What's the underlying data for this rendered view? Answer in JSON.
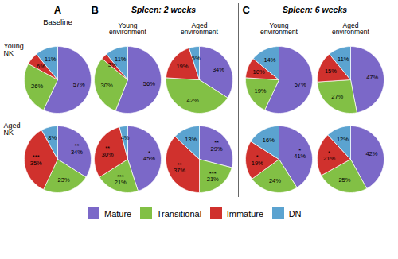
{
  "chart_data": {
    "type": "pie",
    "categories": [
      "Mature",
      "Transitional",
      "Immature",
      "DN"
    ],
    "colors": [
      "#7b68c8",
      "#82c045",
      "#d0312d",
      "#5ba3d0"
    ],
    "legend": "bottom",
    "data_labels": true,
    "row_labels": [
      "Young\nNK",
      "Aged\nNK"
    ],
    "panels": [
      {
        "panel": "A",
        "title": "Baseline",
        "column_labels": [],
        "pies": [
          [
            {
              "values": [
                57,
                26,
                6,
                11
              ],
              "value_labels": [
                "57%",
                "26%",
                "6%",
                "11%"
              ]
            }
          ],
          [
            {
              "values": [
                34,
                23,
                35,
                8
              ],
              "value_labels": [
                "**\n34%",
                "23%",
                "***\n35%",
                "8%"
              ]
            }
          ]
        ]
      },
      {
        "panel": "B",
        "title": "Spleen: 2 weeks",
        "column_labels": [
          "Young\nenvironment",
          "Aged\nenvironment"
        ],
        "pies": [
          [
            {
              "values": [
                56,
                30,
                3,
                11
              ],
              "value_labels": [
                "56%",
                "30%",
                "3%",
                "11%"
              ]
            },
            {
              "values": [
                34,
                42,
                19,
                5
              ],
              "value_labels": [
                "34%",
                "42%",
                "19%",
                "5%"
              ]
            }
          ],
          [
            {
              "values": [
                45,
                21,
                30,
                4
              ],
              "value_labels": [
                "*\n45%",
                "***\n21%",
                "**\n30%",
                "4%"
              ]
            },
            {
              "values": [
                29,
                21,
                37,
                13
              ],
              "value_labels": [
                "**\n29%",
                "***\n21%",
                "**\n37%",
                "13%"
              ]
            }
          ]
        ]
      },
      {
        "panel": "C",
        "title": "Spleen: 6 weeks",
        "column_labels": [
          "Young\nenvironment",
          "Aged\nenvironment"
        ],
        "pies": [
          [
            {
              "values": [
                57,
                19,
                10,
                14
              ],
              "value_labels": [
                "57%",
                "19%",
                "10%",
                "14%"
              ]
            },
            {
              "values": [
                47,
                27,
                15,
                11
              ],
              "value_labels": [
                "47%",
                "27%",
                "15%",
                "11%"
              ]
            }
          ],
          [
            {
              "values": [
                41,
                24,
                19,
                16
              ],
              "value_labels": [
                "*\n41%",
                "24%",
                "*\n19%",
                "16%"
              ]
            },
            {
              "values": [
                42,
                25,
                21,
                12
              ],
              "value_labels": [
                "42%",
                "25%",
                "*\n21%",
                "12%"
              ]
            }
          ]
        ]
      }
    ]
  }
}
